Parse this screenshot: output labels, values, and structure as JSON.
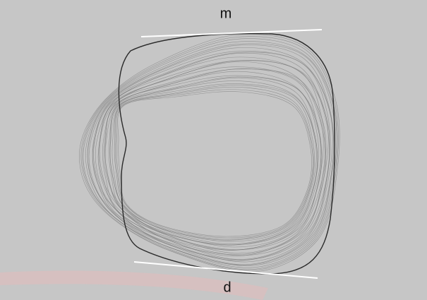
{
  "labels": [
    "m",
    "d"
  ]
}
